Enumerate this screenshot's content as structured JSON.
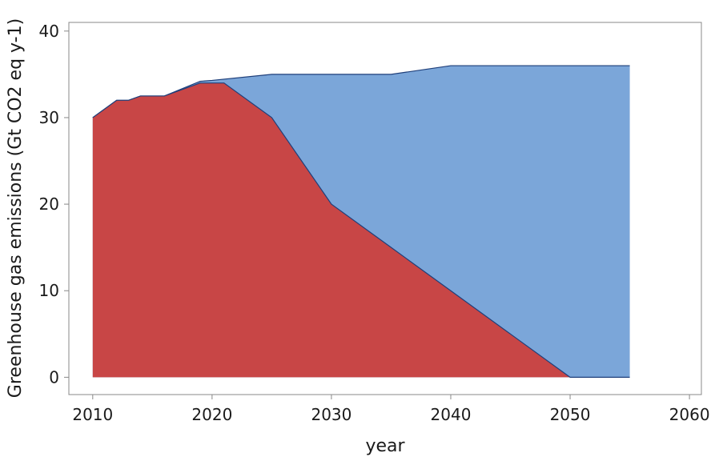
{
  "chart_data": {
    "type": "area",
    "xlabel": "year",
    "ylabel": "Greenhouse gas emissions (Gt CO2 eq y-1)",
    "xlim": [
      2008,
      2061
    ],
    "ylim": [
      -2,
      41
    ],
    "xticks": [
      2010,
      2020,
      2030,
      2040,
      2050,
      2060
    ],
    "yticks": [
      0,
      10,
      20,
      30,
      40
    ],
    "grid": false,
    "legend": "none",
    "series": [
      {
        "color": "#7ba6d9",
        "x": [
          2010,
          2012,
          2013,
          2014,
          2016,
          2019,
          2020,
          2025,
          2030,
          2035,
          2040,
          2045,
          2050,
          2055
        ],
        "values": [
          30,
          32,
          32,
          32.5,
          32.5,
          34.2,
          34.3,
          35,
          35,
          35,
          36,
          36,
          36,
          36
        ]
      },
      {
        "color": "#c84646",
        "x": [
          2010,
          2012,
          2013,
          2014,
          2016,
          2019,
          2020,
          2021,
          2025,
          2030,
          2035,
          2040,
          2045,
          2050,
          2055
        ],
        "values": [
          30,
          32,
          32,
          32.5,
          32.5,
          34,
          34,
          34,
          30,
          20,
          15,
          10,
          5,
          0,
          0
        ]
      }
    ]
  }
}
